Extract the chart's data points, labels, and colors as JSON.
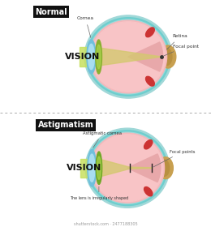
{
  "bg_color": "#ffffff",
  "normal_label": "Normal",
  "astig_label": "Astigmatism",
  "vision_label": "VISION",
  "cornea_label": "Cornea",
  "retina_label": "Retina",
  "focal_point_label": "Focal point",
  "astig_cornea_label": "Astigmatic cornea",
  "focal_points_label": "Focal points",
  "lens_label": "The lens is irregularly shaped",
  "eye_pink": "#f4b8bb",
  "eye_teal_outer": "#6ecece",
  "eye_teal_inner": "#a8dede",
  "sclera_tan": "#d4b878",
  "cornea_blue": "#88cce0",
  "lens_green": "#90b840",
  "beam_green": "#c8e060",
  "beam_tan": "#d4c870",
  "optic_tan": "#c8a050",
  "red_vessel": "#cc3333",
  "label_box": "#111111",
  "label_text": "#ffffff",
  "annot_color": "#333333",
  "divider_color": "#aaaaaa",
  "watermark": "#999999"
}
